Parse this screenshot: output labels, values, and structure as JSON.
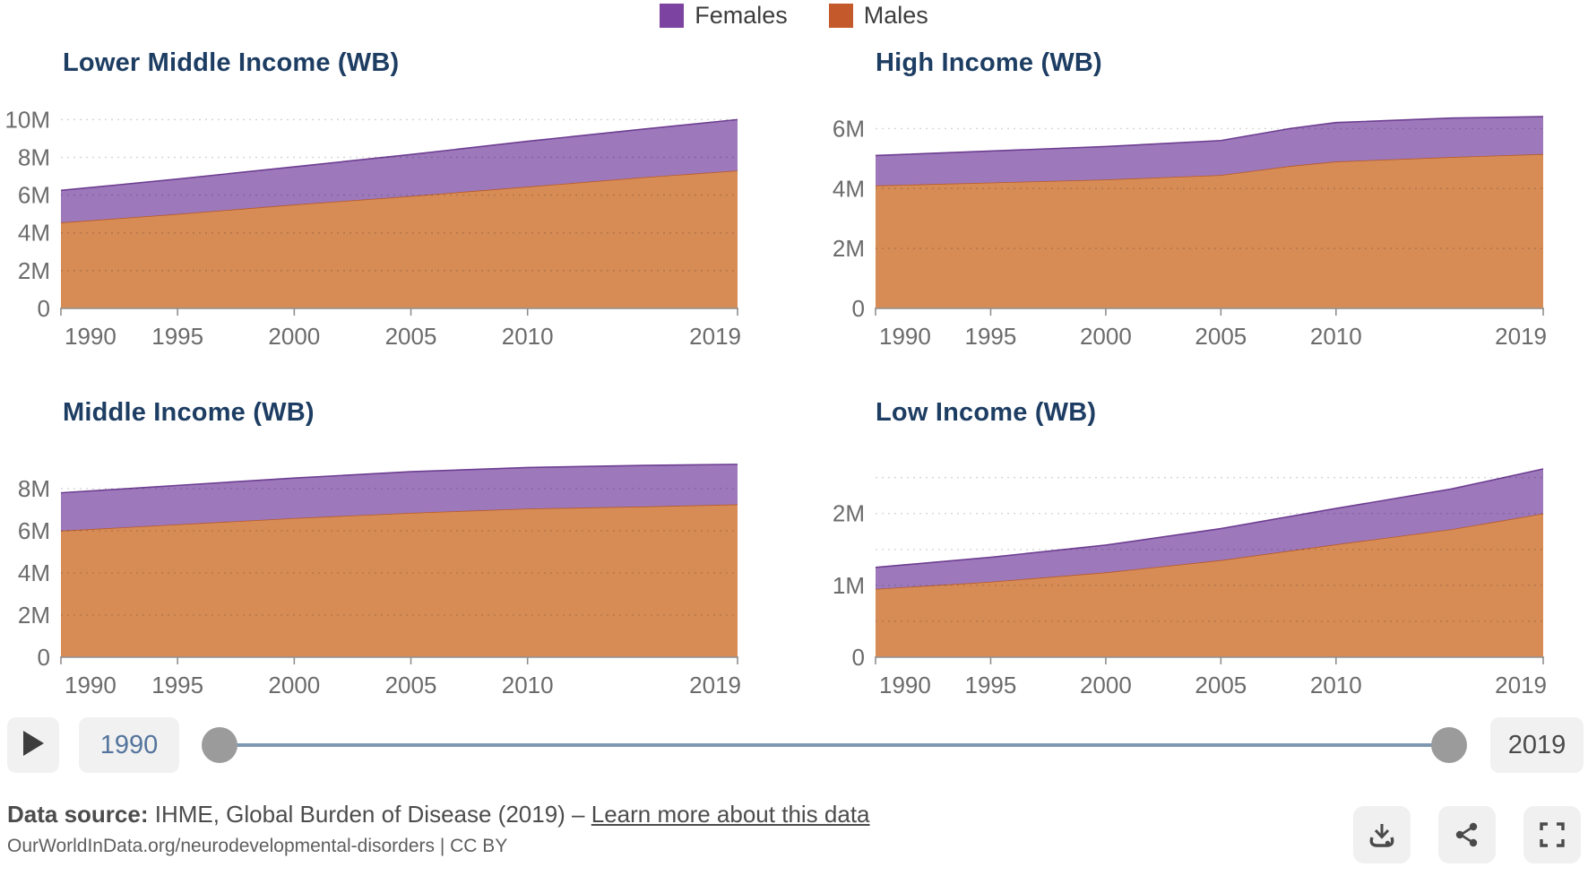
{
  "legend": {
    "items": [
      {
        "label": "Females",
        "color_key": "females"
      },
      {
        "label": "Males",
        "color_key": "males"
      }
    ]
  },
  "colors": {
    "females": "#7c43a0",
    "females_fill": "#9d79bc",
    "females_line": "#6d3e91",
    "males": "#c4592b",
    "males_fill": "#d78c56",
    "males_line": "#b85a28",
    "title": "#1d3d63",
    "axis_text": "#6b6b6b",
    "axis_line": "#8f8f8f",
    "grid": "rgba(0,0,0,0.16)",
    "slider_track": "#7f98b2",
    "slider_handle": "#9b9b9b"
  },
  "chart_data": [
    {
      "type": "area",
      "stacked": true,
      "title": "Lower Middle Income (WB)",
      "x": [
        1990,
        1995,
        2000,
        2005,
        2010,
        2015,
        2019
      ],
      "series": [
        {
          "name": "Males",
          "values": [
            4.55,
            5.0,
            5.5,
            5.95,
            6.45,
            6.95,
            7.3
          ]
        },
        {
          "name": "Females",
          "values": [
            1.7,
            1.85,
            2.0,
            2.2,
            2.4,
            2.55,
            2.7
          ]
        }
      ],
      "unit": "M persons",
      "ylim": [
        0,
        10.35
      ],
      "yticks": [
        {
          "v": 0,
          "label": "0"
        },
        {
          "v": 2,
          "label": "2M"
        },
        {
          "v": 4,
          "label": "4M"
        },
        {
          "v": 6,
          "label": "6M"
        },
        {
          "v": 8,
          "label": "8M"
        },
        {
          "v": 10,
          "label": "10M"
        }
      ],
      "xticks": [
        1990,
        1995,
        2000,
        2005,
        2010,
        2019
      ],
      "grid": true,
      "legend_position": "top"
    },
    {
      "type": "area",
      "stacked": true,
      "title": "High Income (WB)",
      "x": [
        1990,
        1995,
        2000,
        2005,
        2008,
        2010,
        2015,
        2019
      ],
      "series": [
        {
          "name": "Males",
          "values": [
            4.1,
            4.2,
            4.3,
            4.45,
            4.75,
            4.9,
            5.05,
            5.15
          ]
        },
        {
          "name": "Females",
          "values": [
            1.0,
            1.05,
            1.1,
            1.15,
            1.25,
            1.3,
            1.3,
            1.25
          ]
        }
      ],
      "unit": "M persons",
      "ylim": [
        0,
        6.55
      ],
      "yticks": [
        {
          "v": 0,
          "label": "0"
        },
        {
          "v": 2,
          "label": "2M"
        },
        {
          "v": 4,
          "label": "4M"
        },
        {
          "v": 6,
          "label": "6M"
        }
      ],
      "xticks": [
        1990,
        1995,
        2000,
        2005,
        2010,
        2019
      ],
      "grid": true,
      "legend_position": "top"
    },
    {
      "type": "area",
      "stacked": true,
      "title": "Middle Income (WB)",
      "x": [
        1990,
        1995,
        2000,
        2005,
        2010,
        2015,
        2019
      ],
      "series": [
        {
          "name": "Males",
          "values": [
            6.0,
            6.3,
            6.6,
            6.85,
            7.05,
            7.15,
            7.25
          ]
        },
        {
          "name": "Females",
          "values": [
            1.8,
            1.85,
            1.9,
            1.95,
            1.95,
            1.95,
            1.9
          ]
        }
      ],
      "unit": "M persons",
      "ylim": [
        0,
        9.4
      ],
      "yticks": [
        {
          "v": 0,
          "label": "0"
        },
        {
          "v": 2,
          "label": "2M"
        },
        {
          "v": 4,
          "label": "4M"
        },
        {
          "v": 6,
          "label": "6M"
        },
        {
          "v": 8,
          "label": "8M"
        }
      ],
      "xticks": [
        1990,
        1995,
        2000,
        2005,
        2010,
        2019
      ],
      "grid": true,
      "legend_position": "top"
    },
    {
      "type": "area",
      "stacked": true,
      "title": "Low Income (WB)",
      "x": [
        1990,
        1995,
        2000,
        2005,
        2010,
        2015,
        2019
      ],
      "series": [
        {
          "name": "Males",
          "values": [
            0.95,
            1.05,
            1.18,
            1.35,
            1.57,
            1.78,
            2.0
          ]
        },
        {
          "name": "Females",
          "values": [
            0.3,
            0.34,
            0.38,
            0.44,
            0.5,
            0.56,
            0.62
          ]
        }
      ],
      "unit": "M persons",
      "ylim": [
        0,
        2.72
      ],
      "yticks": [
        {
          "v": 0,
          "label": "0"
        },
        {
          "v": 0.5,
          "label": ""
        },
        {
          "v": 1,
          "label": "1M"
        },
        {
          "v": 1.5,
          "label": ""
        },
        {
          "v": 2,
          "label": "2M"
        },
        {
          "v": 2.5,
          "label": ""
        }
      ],
      "xticks": [
        1990,
        1995,
        2000,
        2005,
        2010,
        2019
      ],
      "grid": true,
      "legend_position": "top"
    }
  ],
  "timeline": {
    "start_year": "1990",
    "end_year": "2019"
  },
  "footer": {
    "datasource_label": "Data source:",
    "datasource_text": " IHME, Global Burden of Disease (2019) – ",
    "link_text": "Learn more about this data",
    "citation": "OurWorldInData.org/neurodevelopmental-disorders | CC BY"
  }
}
